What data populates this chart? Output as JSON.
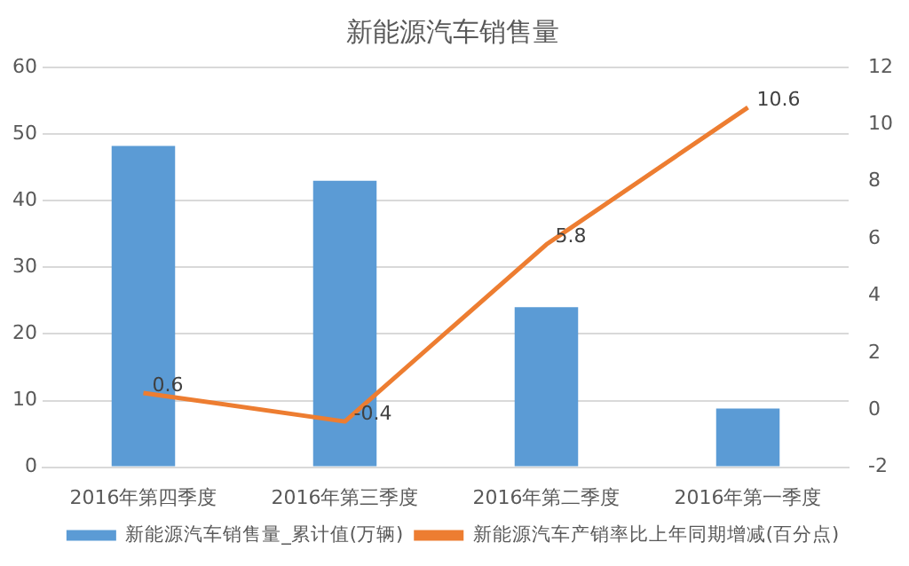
{
  "chart_data": {
    "type": "bar",
    "title": "新能源汽车销售量",
    "categories": [
      "2016年第四季度",
      "2016年第三季度",
      "2016年第二季度",
      "2016年第一季度"
    ],
    "series": [
      {
        "name": "新能源汽车销售量_累计值(万辆)",
        "color": "#5b9bd5",
        "values": [
          48.2,
          43.0,
          24,
          8.8
        ]
      },
      {
        "name": "新能源汽车产销率比上年同期增减(百分点)",
        "type": "line",
        "axis": "y2",
        "color": "#ed7d31",
        "values": [
          0.6,
          -0.4,
          5.8,
          10.6
        ],
        "value_labels": [
          "0.6",
          "-0.4",
          "5.8",
          "10.6"
        ]
      }
    ],
    "ylim": [
      0,
      60
    ],
    "yticks": [
      0,
      10,
      20,
      30,
      40,
      50,
      60
    ],
    "y2lim": [
      -2,
      12
    ],
    "y2ticks": [
      -2,
      0,
      2,
      4,
      6,
      8,
      10,
      12
    ],
    "grid": "y",
    "legend": "bottom",
    "marker": "none"
  }
}
